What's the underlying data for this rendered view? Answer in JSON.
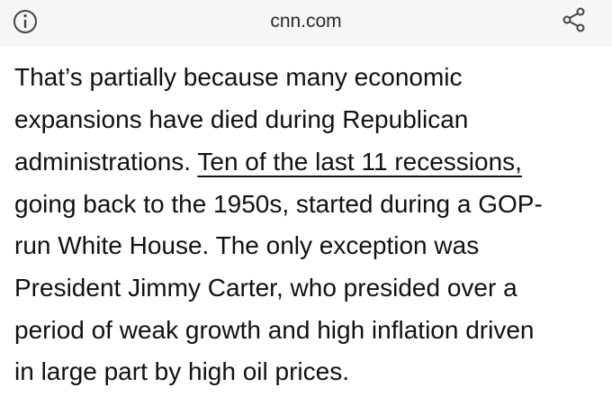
{
  "header": {
    "url": "cnn.com"
  },
  "article": {
    "line_1": "That’s partially because many economic",
    "line_2": "expansions have died during Republican",
    "line_3": "administrations.",
    "link": "Ten of the last 11 recessions,",
    "line_4": "going back to the 1950s, started during a GOP-",
    "line_5": "run White House. The only exception was",
    "line_6": "President Jimmy Carter, who presided over a",
    "line_7": "period of weak growth and high inflation driven",
    "line_8": "in large part by high oil prices."
  }
}
